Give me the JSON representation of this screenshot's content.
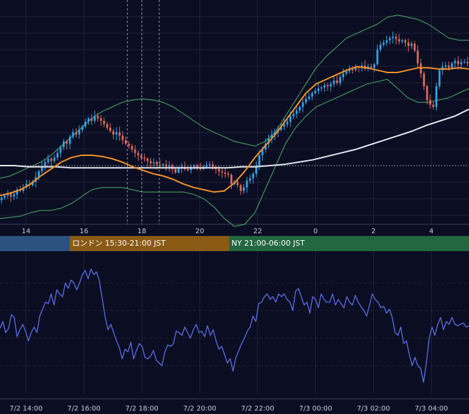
{
  "chart_data": [
    {
      "type": "candlestick",
      "title": "",
      "x_tick_labels": [
        "14",
        "16",
        "18",
        "20",
        "22",
        "0",
        "2",
        "4"
      ],
      "x_tick_hours": [
        14,
        16,
        18,
        20,
        22,
        24,
        26,
        28
      ],
      "x_range_hours": [
        13.1,
        29.3
      ],
      "y_range": [
        0,
        100
      ],
      "grid": true,
      "overlays": [
        "Bollinger Bands",
        "Moving Average (short, orange)",
        "Moving Average (long, white)"
      ],
      "vertical_dotted_lines_hours": [
        17.5,
        18.0,
        18.6
      ],
      "horizontal_dotted_line_y": 41,
      "close": [
        13,
        15,
        17,
        14,
        16,
        20,
        19,
        22,
        25,
        24,
        27,
        31,
        36,
        40,
        44,
        47,
        45,
        48,
        52,
        57,
        62,
        60,
        66,
        70,
        68,
        72,
        75,
        79,
        82,
        80,
        84,
        82,
        80,
        77,
        74,
        71,
        68,
        70,
        67,
        63,
        60,
        58,
        55,
        52,
        50,
        48,
        47,
        45,
        43,
        44,
        42,
        41,
        42,
        40,
        41,
        38,
        35,
        39,
        40,
        38,
        37,
        40,
        41,
        39,
        38,
        40,
        41,
        42,
        40,
        38,
        36,
        35,
        34,
        33,
        25,
        27,
        24,
        19,
        22,
        28,
        30,
        34,
        41,
        50,
        55,
        60,
        65,
        68,
        70,
        72,
        75,
        77,
        79,
        84,
        86,
        89,
        92,
        96,
        99,
        101,
        104,
        106,
        108,
        109,
        111,
        110,
        112,
        115,
        113,
        118,
        121,
        123,
        125,
        124,
        127,
        126,
        128,
        125,
        127,
        126,
        129,
        142,
        146,
        148,
        150,
        152,
        153,
        151,
        149,
        150,
        148,
        145,
        147,
        141,
        130,
        121,
        110,
        98,
        94,
        92,
        110,
        124,
        127,
        128,
        126,
        130,
        132,
        129,
        131,
        131,
        130
      ],
      "bollinger_upper": [
        30,
        32,
        36,
        40,
        44,
        50,
        58,
        66,
        74,
        82,
        88,
        92,
        96,
        98,
        99,
        98,
        96,
        92,
        86,
        80,
        74,
        70,
        66,
        62,
        60,
        58,
        62,
        70,
        84,
        98,
        112,
        126,
        136,
        144,
        152,
        156,
        160,
        164,
        170,
        172,
        170,
        168,
        164,
        158,
        152,
        150,
        150
      ],
      "bollinger_lower": [
        -5,
        -4,
        -3,
        0,
        2,
        2,
        4,
        8,
        14,
        20,
        22,
        22,
        22,
        20,
        18,
        18,
        18,
        18,
        18,
        16,
        12,
        5,
        -5,
        -12,
        -10,
        0,
        20,
        40,
        60,
        74,
        84,
        92,
        96,
        100,
        104,
        108,
        112,
        114,
        116,
        108,
        100,
        96,
        96,
        98,
        100,
        104,
        108
      ],
      "ma_short": [
        15,
        17,
        20,
        25,
        32,
        38,
        44,
        48,
        50,
        50,
        49,
        47,
        44,
        40,
        37,
        34,
        32,
        29,
        25,
        22,
        20,
        18,
        19,
        26,
        36,
        48,
        58,
        68,
        80,
        92,
        104,
        112,
        116,
        120,
        124,
        127,
        126,
        124,
        122,
        122,
        124,
        126,
        126,
        125,
        125,
        126,
        125
      ],
      "ma_long": [
        41,
        41,
        40,
        40,
        40,
        39,
        39,
        39,
        39,
        39,
        39,
        39,
        39,
        39,
        39,
        39,
        39,
        40,
        40,
        41,
        42,
        44,
        46,
        49,
        52,
        55,
        59,
        63,
        67,
        71,
        76,
        80,
        84,
        90
      ]
    },
    {
      "type": "line",
      "title": "",
      "x_tick_labels": [
        "7/2 14:00",
        "7/2 16:00",
        "7/2 18:00",
        "7/2 20:00",
        "7/2 22:00",
        "7/3 00:00",
        "7/3 02:00",
        "7/3 04:00"
      ],
      "x_tick_hours": [
        14,
        16,
        18,
        20,
        22,
        24,
        26,
        28
      ],
      "x_range_hours": [
        13.1,
        29.3
      ],
      "y_range": [
        0,
        100
      ],
      "grid": true,
      "color": "#5d6fe8",
      "values": [
        47,
        52,
        44,
        47,
        57,
        55,
        41,
        46,
        50,
        45,
        38,
        44,
        48,
        44,
        56,
        61,
        66,
        65,
        72,
        64,
        75,
        72,
        70,
        80,
        76,
        82,
        80,
        75,
        80,
        86,
        89,
        83,
        90,
        86,
        88,
        81,
        68,
        55,
        46,
        50,
        44,
        38,
        33,
        25,
        32,
        30,
        37,
        25,
        31,
        36,
        34,
        26,
        25,
        27,
        31,
        24,
        22,
        20,
        30,
        35,
        34,
        36,
        45,
        44,
        42,
        48,
        44,
        40,
        46,
        50,
        44,
        45,
        41,
        49,
        42,
        46,
        38,
        32,
        34,
        28,
        22,
        25,
        16,
        26,
        31,
        36,
        40,
        45,
        48,
        56,
        52,
        65,
        66,
        70,
        72,
        68,
        70,
        66,
        72,
        70,
        72,
        68,
        66,
        60,
        74,
        76,
        70,
        64,
        66,
        58,
        70,
        68,
        62,
        72,
        68,
        66,
        66,
        72,
        64,
        68,
        65,
        62,
        70,
        66,
        64,
        71,
        66,
        63,
        60,
        56,
        64,
        72,
        68,
        66,
        62,
        63,
        58,
        61,
        55,
        44,
        42,
        48,
        36,
        38,
        28,
        20,
        26,
        20,
        18,
        8,
        22,
        40,
        48,
        42,
        50,
        55,
        46,
        52,
        50,
        55,
        50,
        49,
        50,
        51,
        48,
        49
      ]
    }
  ],
  "sessions": [
    {
      "label": "",
      "color": "#2c5280"
    },
    {
      "label": "ロンドン 15:30-21:00 JST",
      "color": "#8a5a15"
    },
    {
      "label": "NY 21:00-06:00 JST",
      "color": "#236740"
    }
  ],
  "colors": {
    "background": "#0b0e23",
    "grid": "#1e2238",
    "candle_up": "#33a4e8",
    "candle_down": "#e06a5a",
    "bollinger": "#4fae6a",
    "ma_short": "#f3932a",
    "ma_long": "#e8e8f0",
    "dotted_line": "#8e98b8"
  }
}
